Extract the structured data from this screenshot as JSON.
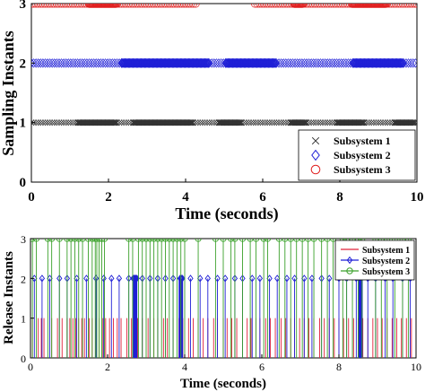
{
  "chart_data": [
    {
      "type": "scatter",
      "xlabel": "Time (seconds)",
      "ylabel": "Sampling Instants",
      "xlim": [
        0,
        10
      ],
      "ylim": [
        0,
        3
      ],
      "xticks": [
        "0",
        "2",
        "4",
        "6",
        "8",
        "10"
      ],
      "yticks": [
        "0",
        "1",
        "2",
        "3"
      ],
      "grid": false,
      "legend_position": "bottom-right",
      "series": [
        {
          "name": "Subsystem 1",
          "marker": "x",
          "color": "#333333",
          "y": 1,
          "dense_segments": [
            [
              0.0,
              10.0
            ]
          ],
          "darker_segments": [
            [
              1.2,
              2.2
            ],
            [
              2.6,
              4.2
            ],
            [
              4.8,
              5.4
            ],
            [
              6.7,
              7.1
            ],
            [
              7.9,
              8.6
            ],
            [
              9.4,
              9.9
            ]
          ]
        },
        {
          "name": "Subsystem 2",
          "marker": "diamond",
          "color": "#1f1fd6",
          "y": 2,
          "dense_segments": [
            [
              0.0,
              10.0
            ]
          ],
          "darker_segments": [
            [
              2.3,
              4.6
            ],
            [
              5.0,
              6.3
            ],
            [
              8.3,
              9.6
            ]
          ]
        },
        {
          "name": "Subsystem 3",
          "marker": "circle",
          "color": "#e02020",
          "y": 3,
          "dense_segments": [
            [
              0.0,
              4.3
            ],
            [
              5.8,
              10.0
            ]
          ],
          "darker_segments": [
            [
              1.5,
              2.2
            ],
            [
              6.8,
              7.0
            ],
            [
              8.3,
              9.2
            ]
          ]
        }
      ]
    },
    {
      "type": "stem",
      "xlabel": "Time (seconds)",
      "ylabel": "Release Instants",
      "xlim": [
        0,
        10
      ],
      "ylim": [
        0,
        3
      ],
      "xticks": [
        "0",
        "2",
        "4",
        "6",
        "8",
        "10"
      ],
      "yticks": [
        "0",
        "1",
        "2",
        "3"
      ],
      "grid": false,
      "legend_position": "top-right",
      "series": [
        {
          "name": "Subsystem 1",
          "marker": "line",
          "color": "#e0203a",
          "y": 1,
          "stems": [
            0.05,
            0.2,
            0.28,
            0.35,
            0.55,
            0.7,
            0.82,
            0.95,
            1.02,
            1.1,
            1.18,
            1.25,
            1.33,
            1.4,
            1.52,
            1.6,
            1.7,
            1.78,
            1.88,
            1.95,
            2.05,
            2.15,
            2.25,
            2.35,
            2.5,
            2.62,
            2.78,
            2.9,
            3.05,
            3.2,
            3.3,
            3.45,
            3.55,
            3.7,
            3.85,
            3.95,
            4.1,
            4.22,
            4.35,
            4.48,
            4.6,
            4.75,
            4.85,
            5.0,
            5.1,
            5.22,
            5.35,
            5.5,
            5.62,
            5.72,
            5.85,
            5.95,
            6.1,
            6.22,
            6.35,
            6.5,
            6.62,
            6.75,
            6.85,
            6.98,
            7.1,
            7.22,
            7.35,
            7.5,
            7.62,
            7.75,
            7.88,
            8.0,
            8.12,
            8.25,
            8.38,
            8.5,
            8.62,
            8.75,
            8.88,
            9.0,
            9.12,
            9.25,
            9.38,
            9.5,
            9.62,
            9.75,
            9.88
          ]
        },
        {
          "name": "Subsystem 2",
          "marker": "diamond",
          "color": "#1f1fd6",
          "y": 2,
          "stems": [
            0.1,
            0.3,
            0.5,
            0.75,
            0.95,
            1.2,
            1.45,
            1.7,
            1.9,
            2.1,
            2.3,
            2.55,
            2.66,
            2.68,
            2.7,
            2.72,
            2.74,
            2.76,
            2.9,
            3.1,
            3.3,
            3.5,
            3.7,
            3.88,
            3.9,
            3.92,
            3.94,
            4.15,
            4.4,
            4.6,
            4.85,
            5.05,
            5.3,
            5.5,
            5.75,
            5.95,
            6.2,
            6.4,
            6.65,
            6.85,
            7.1,
            7.3,
            7.55,
            7.75,
            8.0,
            8.2,
            8.45,
            8.52,
            8.55,
            8.58,
            8.75,
            8.95,
            9.2,
            9.4,
            9.65,
            9.85
          ],
          "bold_stems": [
            2.7,
            3.9,
            8.55
          ]
        },
        {
          "name": "Subsystem 3",
          "marker": "circle",
          "color": "#3aa02a",
          "y": 3,
          "stems": [
            0.05,
            0.15,
            0.45,
            0.55,
            0.75,
            0.95,
            1.05,
            1.15,
            1.25,
            1.35,
            1.5,
            1.6,
            1.68,
            1.72,
            1.78,
            1.85,
            1.92,
            2.55,
            2.65,
            2.8,
            2.9,
            3.0,
            3.1,
            3.2,
            3.3,
            3.4,
            3.5,
            3.6,
            3.7,
            3.8,
            3.9,
            4.0,
            4.35,
            4.8,
            5.0,
            5.2,
            5.3,
            5.5,
            5.7,
            5.85,
            6.05,
            6.15,
            6.45,
            6.6,
            6.75,
            6.9,
            7.05,
            7.2,
            7.35,
            7.55,
            7.7,
            7.85,
            8.1,
            8.2,
            8.35,
            8.5,
            8.6,
            8.95,
            9.1,
            9.25,
            9.45,
            9.65,
            9.8
          ]
        }
      ]
    }
  ]
}
